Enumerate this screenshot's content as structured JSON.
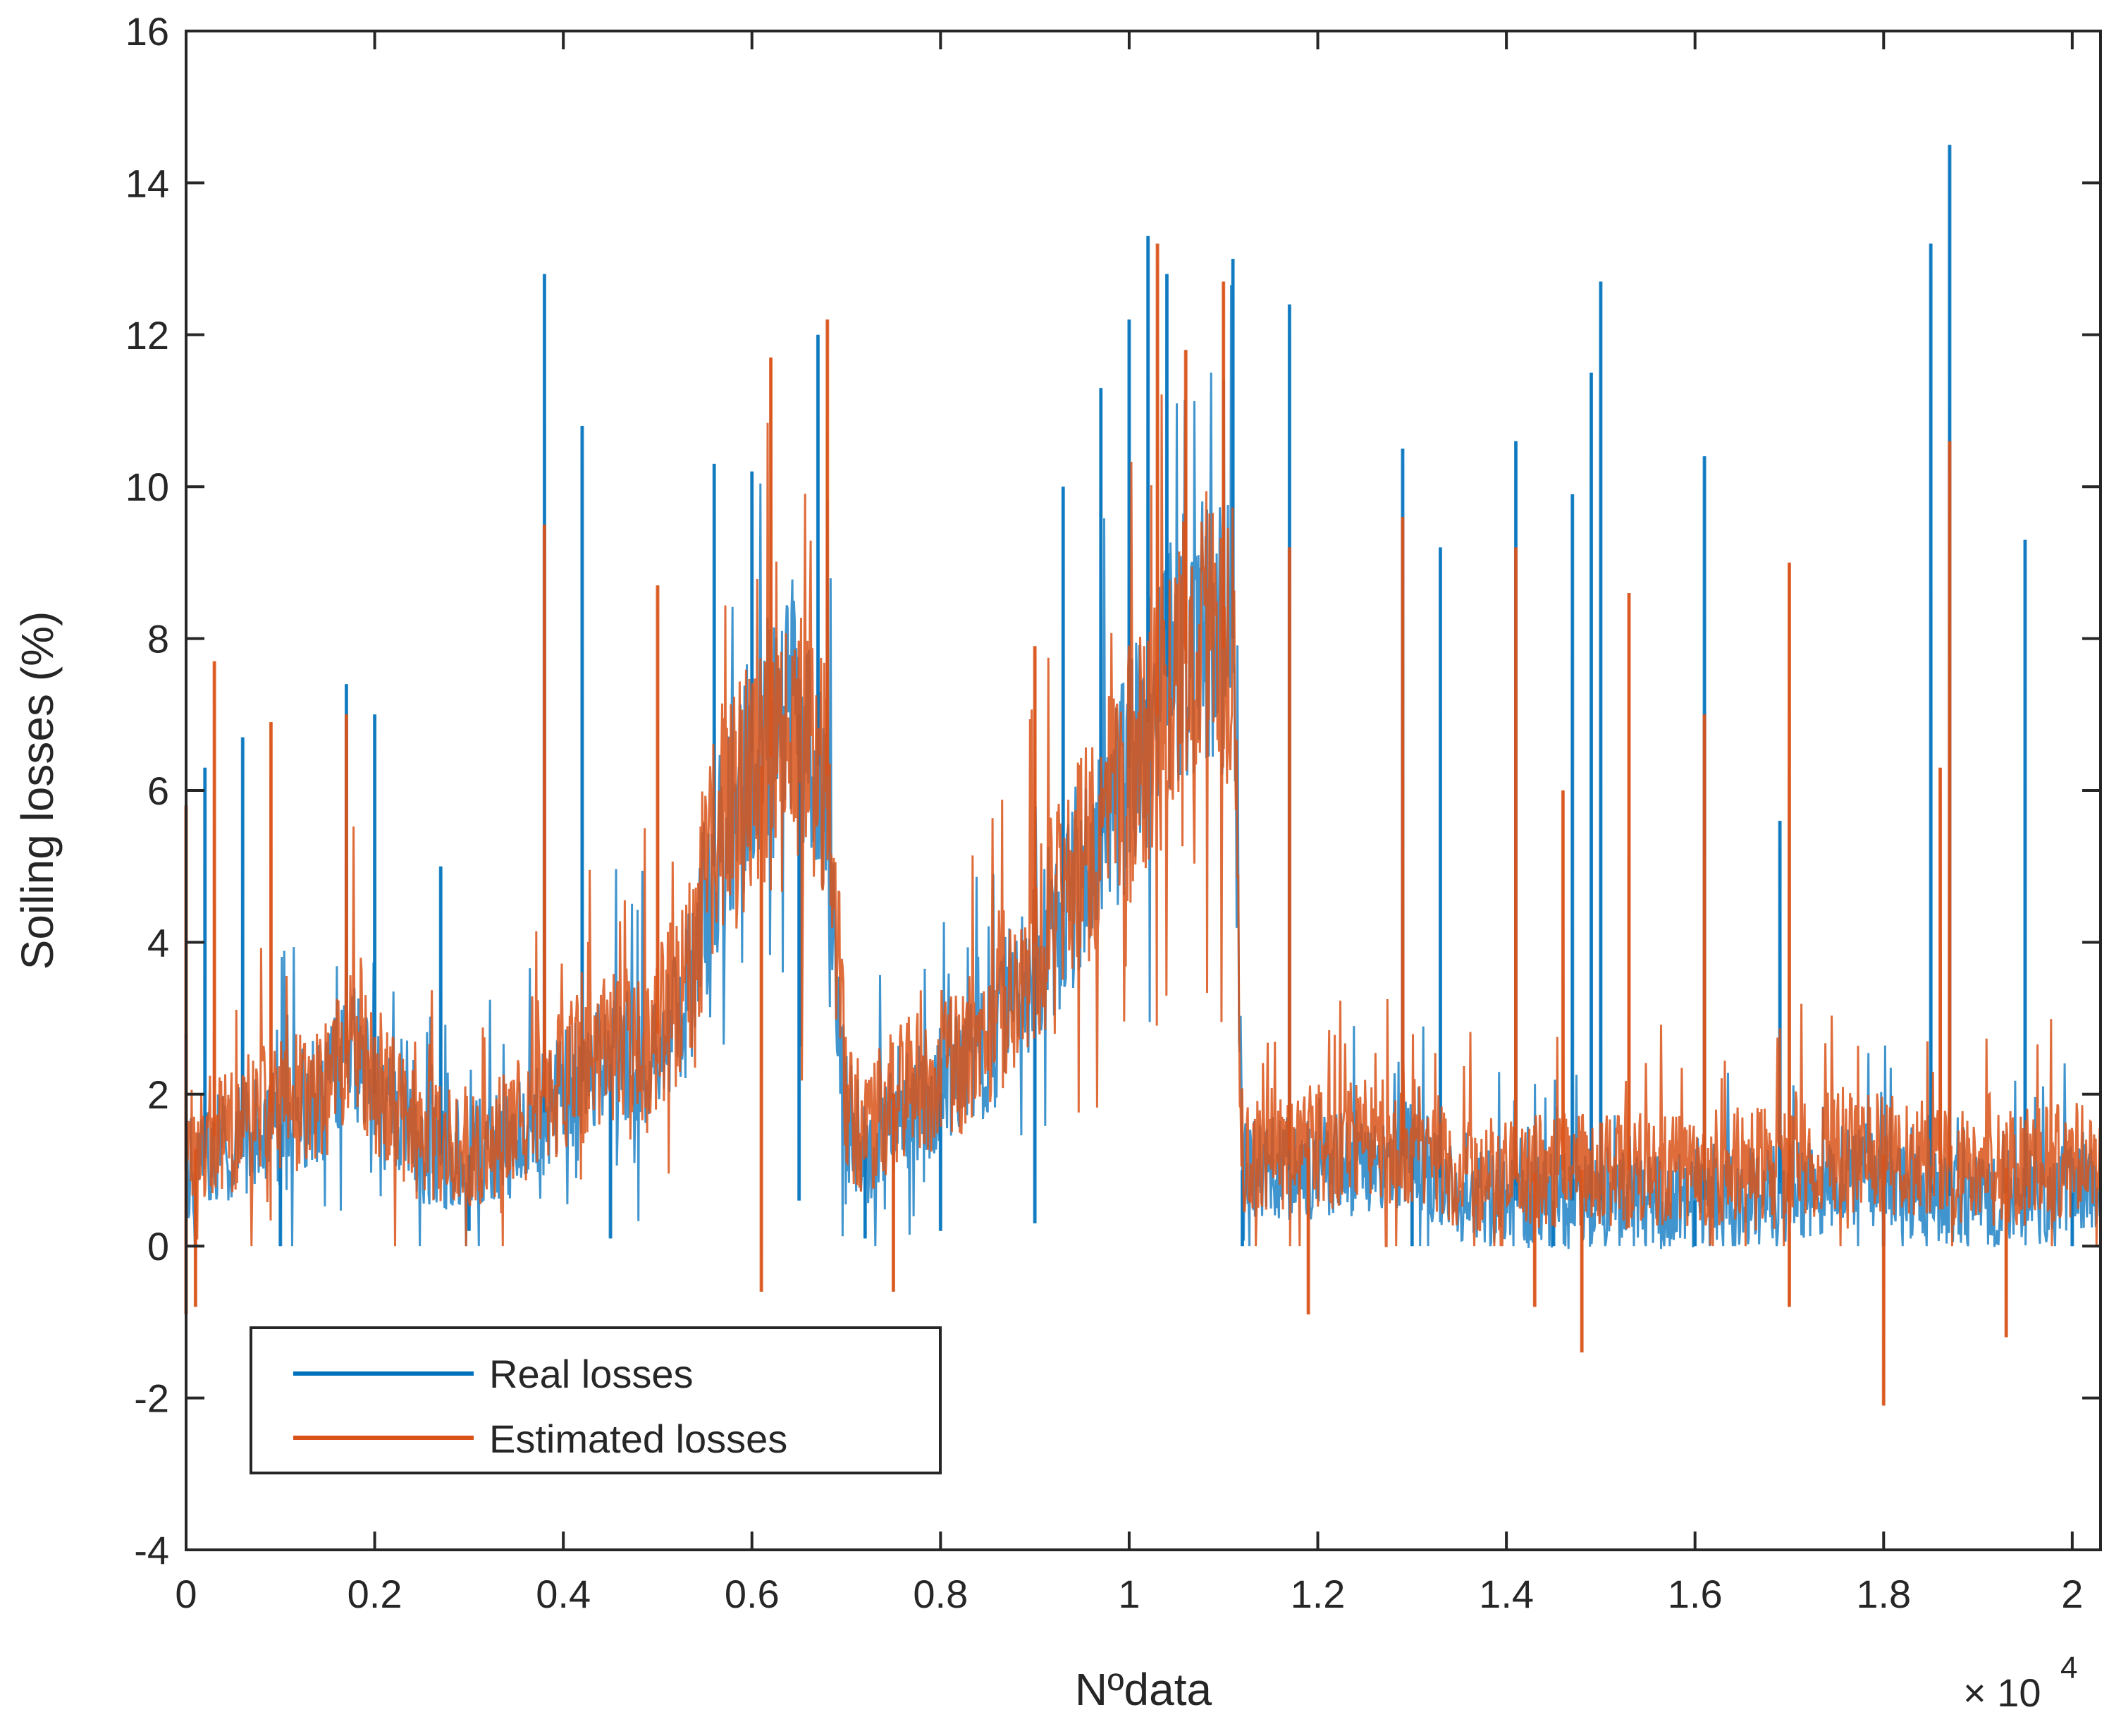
{
  "chart_data": {
    "type": "line",
    "title": "",
    "xlabel": "Nºdata",
    "ylabel": "Soiling losses (%)",
    "x_exponent_label": "× 10",
    "x_exponent_power": "4",
    "xlim": [
      0,
      2.03
    ],
    "ylim": [
      -4,
      16
    ],
    "x_ticks": [
      0,
      0.2,
      0.4,
      0.6,
      0.8,
      1,
      1.2,
      1.4,
      1.6,
      1.8,
      2
    ],
    "x_tick_labels": [
      "0",
      "0.2",
      "0.4",
      "0.6",
      "0.8",
      "1",
      "1.2",
      "1.4",
      "1.6",
      "1.8",
      "2"
    ],
    "y_ticks": [
      -4,
      -2,
      0,
      2,
      4,
      6,
      8,
      10,
      12,
      14,
      16
    ],
    "y_tick_labels": [
      "-4",
      "-2",
      "0",
      "2",
      "4",
      "6",
      "8",
      "10",
      "12",
      "14",
      "16"
    ],
    "legend_position": "lower-left",
    "series": [
      {
        "name": "Real losses",
        "color": "#0072BD",
        "baseline": [
          [
            0,
            1.0
          ],
          [
            0.05,
            1.4
          ],
          [
            0.1,
            1.6
          ],
          [
            0.15,
            2.0
          ],
          [
            0.18,
            2.6
          ],
          [
            0.2,
            2.0
          ],
          [
            0.25,
            1.2
          ],
          [
            0.3,
            1.2
          ],
          [
            0.35,
            1.4
          ],
          [
            0.4,
            2.0
          ],
          [
            0.45,
            2.4
          ],
          [
            0.5,
            2.6
          ],
          [
            0.53,
            3.2
          ],
          [
            0.56,
            5.0
          ],
          [
            0.6,
            6.5
          ],
          [
            0.65,
            7.0
          ],
          [
            0.68,
            6.0
          ],
          [
            0.7,
            1.5
          ],
          [
            0.72,
            1.2
          ],
          [
            0.75,
            1.8
          ],
          [
            0.8,
            2.0
          ],
          [
            0.85,
            2.6
          ],
          [
            0.9,
            3.8
          ],
          [
            0.95,
            4.8
          ],
          [
            1.0,
            6.3
          ],
          [
            1.05,
            7.8
          ],
          [
            1.08,
            8.2
          ],
          [
            1.11,
            8.0
          ],
          [
            1.12,
            1.0
          ],
          [
            1.2,
            1.0
          ],
          [
            1.3,
            1.2
          ],
          [
            1.35,
            0.7
          ],
          [
            1.4,
            0.6
          ],
          [
            1.45,
            0.6
          ],
          [
            1.5,
            0.6
          ],
          [
            1.6,
            0.6
          ],
          [
            1.7,
            0.7
          ],
          [
            1.78,
            1.0
          ],
          [
            1.8,
            0.8
          ],
          [
            1.9,
            0.6
          ],
          [
            2.0,
            0.7
          ],
          [
            2.03,
            0.8
          ]
        ],
        "spikes": [
          [
            0.0,
            2.8
          ],
          [
            0.02,
            6.3
          ],
          [
            0.06,
            6.7
          ],
          [
            0.17,
            7.4
          ],
          [
            0.2,
            7.0
          ],
          [
            0.27,
            5.0
          ],
          [
            0.38,
            12.8
          ],
          [
            0.42,
            10.8
          ],
          [
            0.56,
            10.3
          ],
          [
            0.6,
            10.2
          ],
          [
            0.67,
            12.0
          ],
          [
            0.93,
            10.0
          ],
          [
            0.97,
            11.3
          ],
          [
            1.0,
            12.2
          ],
          [
            1.02,
            13.3
          ],
          [
            1.04,
            12.8
          ],
          [
            1.11,
            13.0
          ],
          [
            1.17,
            12.4
          ],
          [
            1.29,
            10.5
          ],
          [
            1.33,
            9.2
          ],
          [
            1.41,
            10.6
          ],
          [
            1.47,
            9.9
          ],
          [
            1.49,
            11.5
          ],
          [
            1.5,
            12.7
          ],
          [
            1.61,
            10.4
          ],
          [
            1.69,
            5.6
          ],
          [
            1.85,
            13.2
          ],
          [
            1.87,
            14.5
          ],
          [
            1.95,
            9.3
          ]
        ],
        "dips": [
          [
            0.1,
            0.0
          ],
          [
            0.3,
            0.2
          ],
          [
            0.45,
            0.1
          ],
          [
            0.65,
            0.6
          ],
          [
            0.72,
            0.1
          ],
          [
            0.8,
            0.2
          ],
          [
            0.9,
            0.3
          ],
          [
            1.12,
            0.0
          ],
          [
            1.3,
            0.0
          ],
          [
            1.45,
            0.0
          ],
          [
            1.6,
            0.0
          ],
          [
            1.8,
            0.0
          ],
          [
            2.0,
            0.0
          ]
        ]
      },
      {
        "name": "Estimated losses",
        "color": "#D95319",
        "baseline": [
          [
            0,
            1.2
          ],
          [
            0.05,
            1.6
          ],
          [
            0.1,
            1.8
          ],
          [
            0.15,
            2.0
          ],
          [
            0.18,
            2.8
          ],
          [
            0.2,
            2.2
          ],
          [
            0.25,
            1.4
          ],
          [
            0.3,
            1.3
          ],
          [
            0.35,
            1.6
          ],
          [
            0.4,
            2.2
          ],
          [
            0.45,
            2.6
          ],
          [
            0.5,
            2.8
          ],
          [
            0.53,
            3.5
          ],
          [
            0.56,
            5.2
          ],
          [
            0.6,
            6.2
          ],
          [
            0.65,
            6.8
          ],
          [
            0.68,
            6.2
          ],
          [
            0.7,
            1.8
          ],
          [
            0.72,
            1.5
          ],
          [
            0.75,
            2.0
          ],
          [
            0.8,
            2.2
          ],
          [
            0.85,
            2.9
          ],
          [
            0.9,
            4.0
          ],
          [
            0.95,
            5.0
          ],
          [
            1.0,
            6.2
          ],
          [
            1.05,
            7.5
          ],
          [
            1.08,
            8.0
          ],
          [
            1.11,
            7.8
          ],
          [
            1.12,
            1.2
          ],
          [
            1.2,
            1.3
          ],
          [
            1.3,
            1.4
          ],
          [
            1.35,
            1.0
          ],
          [
            1.4,
            0.9
          ],
          [
            1.45,
            1.0
          ],
          [
            1.5,
            1.0
          ],
          [
            1.6,
            1.0
          ],
          [
            1.7,
            1.1
          ],
          [
            1.78,
            1.4
          ],
          [
            1.8,
            1.2
          ],
          [
            1.9,
            1.0
          ],
          [
            2.0,
            1.1
          ],
          [
            2.03,
            1.2
          ]
        ],
        "spikes": [
          [
            0.0,
            5.8
          ],
          [
            0.03,
            7.7
          ],
          [
            0.09,
            6.9
          ],
          [
            0.17,
            7.0
          ],
          [
            0.38,
            9.5
          ],
          [
            0.5,
            8.7
          ],
          [
            0.62,
            11.7
          ],
          [
            0.68,
            12.2
          ],
          [
            0.9,
            7.9
          ],
          [
            1.03,
            13.2
          ],
          [
            1.06,
            11.8
          ],
          [
            1.1,
            12.7
          ],
          [
            1.17,
            9.2
          ],
          [
            1.29,
            9.6
          ],
          [
            1.41,
            9.2
          ],
          [
            1.46,
            6.0
          ],
          [
            1.53,
            8.6
          ],
          [
            1.61,
            7.0
          ],
          [
            1.7,
            9.0
          ],
          [
            1.86,
            6.3
          ],
          [
            1.87,
            10.6
          ]
        ],
        "dips": [
          [
            0.0,
            -0.9
          ],
          [
            0.01,
            -0.8
          ],
          [
            0.61,
            -0.6
          ],
          [
            0.75,
            -0.6
          ],
          [
            1.19,
            -0.9
          ],
          [
            1.43,
            -0.8
          ],
          [
            1.48,
            -1.4
          ],
          [
            1.7,
            -0.8
          ],
          [
            1.8,
            -2.1
          ],
          [
            1.93,
            -1.2
          ]
        ]
      }
    ]
  }
}
